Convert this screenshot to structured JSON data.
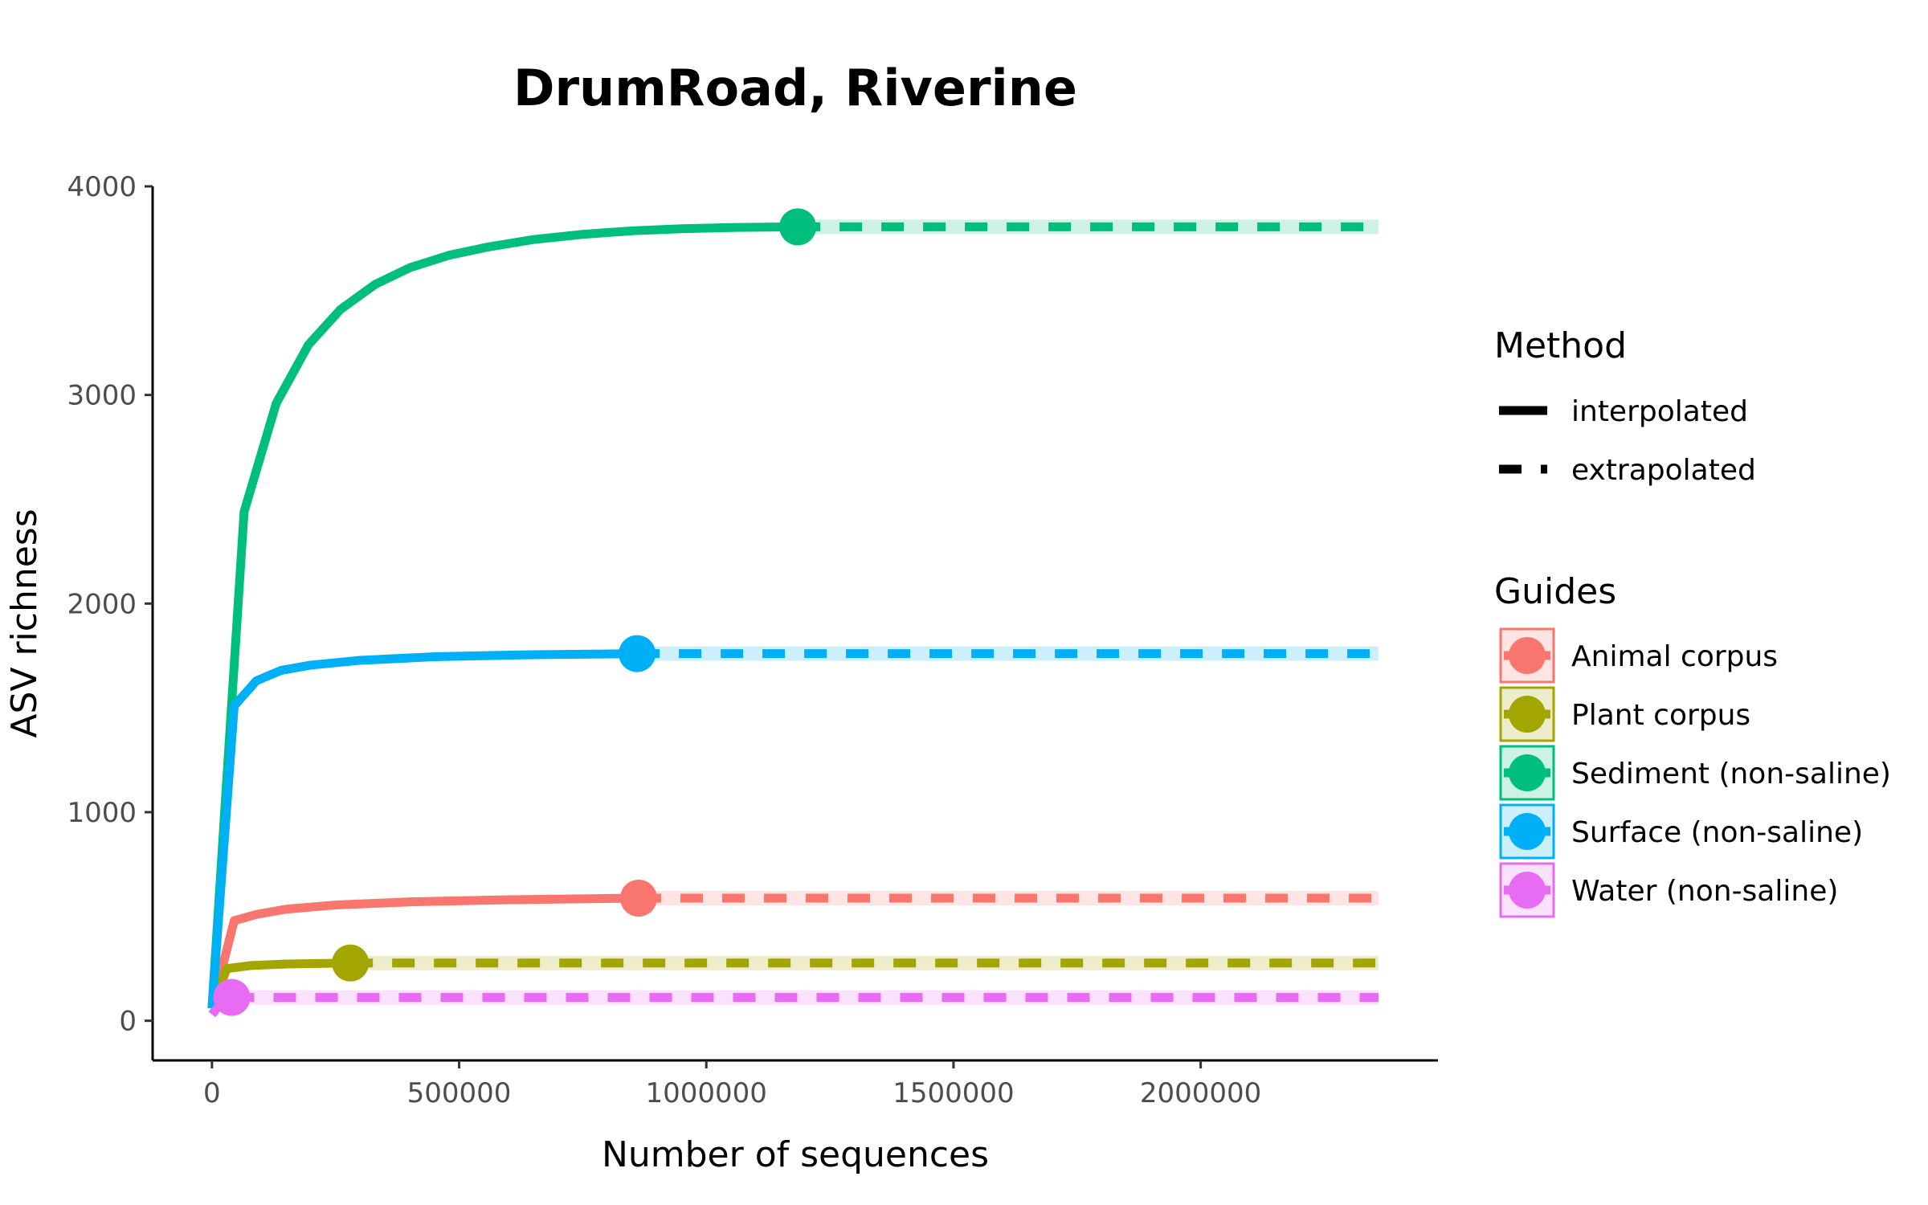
{
  "chart_data": {
    "type": "line",
    "title": "DrumRoad, Riverine",
    "xlabel": "Number of sequences",
    "ylabel": "ASV richness",
    "xlim": [
      -120000,
      2480000
    ],
    "ylim": [
      -190,
      4000
    ],
    "x_ticks": [
      0,
      500000,
      1000000,
      1500000,
      2000000
    ],
    "x_tick_labels": [
      "0",
      "500000",
      "1000000",
      "1500000",
      "2000000"
    ],
    "y_ticks": [
      0,
      1000,
      2000,
      3000,
      4000
    ],
    "y_tick_labels": [
      "0",
      "1000",
      "2000",
      "3000",
      "4000"
    ],
    "grid": false,
    "legend_placement": "right",
    "method_legend": {
      "title": "Method",
      "items": [
        {
          "label": "interpolated",
          "style": "solid"
        },
        {
          "label": "extrapolated",
          "style": "dashed"
        }
      ]
    },
    "guides_legend_title": "Guides",
    "series": [
      {
        "name": "Animal corpus",
        "color": "#F8766D",
        "interpolated": [
          [
            0,
            60
          ],
          [
            45000,
            480
          ],
          [
            90000,
            510
          ],
          [
            150000,
            535
          ],
          [
            250000,
            555
          ],
          [
            400000,
            570
          ],
          [
            600000,
            580
          ],
          [
            863000,
            588
          ]
        ],
        "observed": [
          863000,
          588
        ],
        "extrapolated": [
          [
            863000,
            588
          ],
          [
            2360000,
            588
          ]
        ]
      },
      {
        "name": "Plant corpus",
        "color": "#A3A500",
        "interpolated": [
          [
            0,
            60
          ],
          [
            30000,
            250
          ],
          [
            80000,
            265
          ],
          [
            150000,
            272
          ],
          [
            280000,
            277
          ]
        ],
        "observed": [
          280000,
          277
        ],
        "extrapolated": [
          [
            280000,
            277
          ],
          [
            2360000,
            277
          ]
        ]
      },
      {
        "name": "Sediment (non-saline)",
        "color": "#00BF7D",
        "interpolated": [
          [
            0,
            60
          ],
          [
            65000,
            2440
          ],
          [
            130000,
            2960
          ],
          [
            195000,
            3240
          ],
          [
            260000,
            3410
          ],
          [
            330000,
            3530
          ],
          [
            400000,
            3610
          ],
          [
            480000,
            3670
          ],
          [
            560000,
            3710
          ],
          [
            650000,
            3745
          ],
          [
            750000,
            3770
          ],
          [
            850000,
            3787
          ],
          [
            950000,
            3797
          ],
          [
            1060000,
            3803
          ],
          [
            1185000,
            3806
          ]
        ],
        "observed": [
          1185000,
          3806
        ],
        "extrapolated": [
          [
            1185000,
            3806
          ],
          [
            2360000,
            3806
          ]
        ]
      },
      {
        "name": "Surface (non-saline)",
        "color": "#00B0F6",
        "interpolated": [
          [
            0,
            60
          ],
          [
            45000,
            1510
          ],
          [
            90000,
            1630
          ],
          [
            140000,
            1680
          ],
          [
            200000,
            1705
          ],
          [
            300000,
            1728
          ],
          [
            450000,
            1745
          ],
          [
            650000,
            1755
          ],
          [
            860000,
            1760
          ]
        ],
        "observed": [
          860000,
          1760
        ],
        "extrapolated": [
          [
            860000,
            1760
          ],
          [
            2360000,
            1760
          ]
        ]
      },
      {
        "name": "Water (non-saline)",
        "color": "#E76BF3",
        "interpolated": [
          [
            0,
            30
          ],
          [
            25000,
            105
          ],
          [
            40000,
            112
          ]
        ],
        "observed": [
          40000,
          112
        ],
        "extrapolated": [
          [
            40000,
            112
          ],
          [
            2360000,
            112
          ]
        ]
      }
    ]
  }
}
